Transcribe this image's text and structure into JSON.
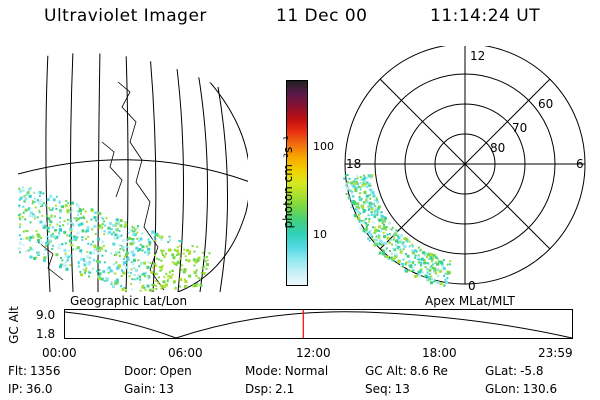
{
  "header": {
    "title": "Ultraviolet Imager",
    "date": "11 Dec 00",
    "time": "11:14:24 UT"
  },
  "left_panel": {
    "label": "Geographic Lat/Lon"
  },
  "right_panel": {
    "label": "Apex MLat/MLT",
    "mlt_labels": [
      "12",
      "18",
      "6",
      "0"
    ],
    "mlat_labels": [
      "60",
      "70",
      "80"
    ]
  },
  "colorbar": {
    "label": "photon cm⁻²s⁻¹",
    "ticks": [
      "100",
      "10"
    ],
    "colors": [
      "#202020",
      "#5a1a4a",
      "#8a1030",
      "#c01010",
      "#e83010",
      "#f07010",
      "#f8a800",
      "#f0d000",
      "#d8e820",
      "#a8e030",
      "#70d848",
      "#40d080",
      "#30d0b8",
      "#50d8e0",
      "#90e8f0",
      "#c8f0f8",
      "#eef8fc"
    ]
  },
  "timeline": {
    "ylabel": "GC Alt",
    "yticks": [
      "9.0",
      "1.8"
    ],
    "xticks": [
      "00:00",
      "06:00",
      "12:00",
      "18:00",
      "23:59"
    ],
    "current_time_fraction": 0.47
  },
  "footer": {
    "row1": [
      {
        "k": "Flt:",
        "v": "1356"
      },
      {
        "k": "Door:",
        "v": "Open"
      },
      {
        "k": "Mode:",
        "v": "Normal"
      },
      {
        "k": "GC Alt:",
        "v": "8.6 Re"
      },
      {
        "k": "GLat:",
        "v": "-5.8"
      }
    ],
    "row2": [
      {
        "k": "IP:",
        "v": "36.0"
      },
      {
        "k": "Gain:",
        "v": "13"
      },
      {
        "k": "Dsp:",
        "v": "2.1"
      },
      {
        "k": "Seq:",
        "v": "13"
      },
      {
        "k": "GLon:",
        "v": "130.6"
      }
    ]
  }
}
